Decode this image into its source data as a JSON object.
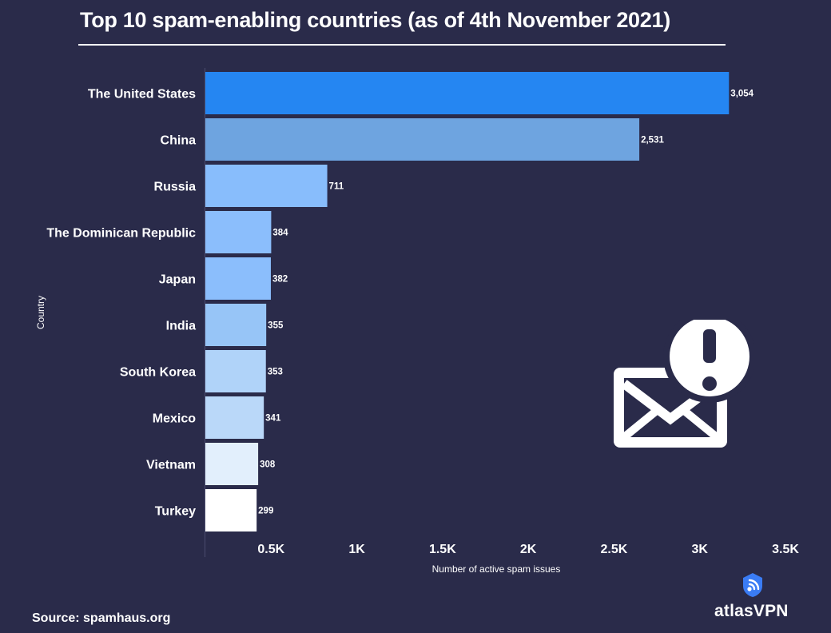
{
  "title": "Top 10 spam-enabling countries (as of 4th November 2021)",
  "source": "Source: spamhaus.org",
  "brand": {
    "name": "atlasVPN",
    "icon": "atlasvpn-logo-icon"
  },
  "decoration": {
    "icon": "spam-mail-alert-icon"
  },
  "colors": {
    "background": "#2a2b4a",
    "text": "#ffffff"
  },
  "chart_data": {
    "type": "bar",
    "orientation": "horizontal",
    "title": "Top 10 spam-enabling countries (as of 4th November 2021)",
    "xlabel": "Number of active spam issues",
    "ylabel": "Country",
    "xlim": [
      0,
      3500
    ],
    "grid": false,
    "xticks": [
      {
        "value": 500,
        "label": "0.5K"
      },
      {
        "value": 1000,
        "label": "1K"
      },
      {
        "value": 1500,
        "label": "1.5K"
      },
      {
        "value": 2000,
        "label": "2K"
      },
      {
        "value": 2500,
        "label": "2.5K"
      },
      {
        "value": 3000,
        "label": "3K"
      },
      {
        "value": 3500,
        "label": "3.5K"
      }
    ],
    "categories": [
      "The United States",
      "China",
      "Russia",
      "The Dominican Republic",
      "Japan",
      "India",
      "South Korea",
      "Mexico",
      "Vietnam",
      "Turkey"
    ],
    "values": [
      3054,
      2531,
      711,
      384,
      382,
      355,
      353,
      341,
      308,
      299
    ],
    "value_labels": [
      "3,054",
      "2,531",
      "711",
      "384",
      "382",
      "355",
      "353",
      "341",
      "308",
      "299"
    ],
    "colors": [
      "#2586f2",
      "#6ea4e0",
      "#88bdfc",
      "#8bbefc",
      "#8bbefc",
      "#97c5f7",
      "#b0d3f9",
      "#bad8f9",
      "#e2effc",
      "#ffffff"
    ]
  }
}
